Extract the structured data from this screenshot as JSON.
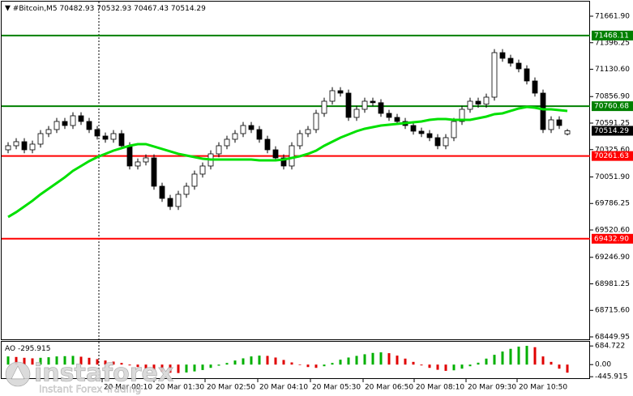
{
  "chart_data": {
    "type": "candlestick",
    "symbol": "#Bitcoin,M5",
    "open": [
      70323.75,
      70364.3,
      70404.85,
      70323.75,
      70380.52,
      70485.95,
      70526.5,
      70607.6,
      70567.05,
      70664.37,
      70607.6,
      70526.5,
      70461.62,
      70429.18,
      70485.95,
      70364.3,
      70161.55,
      70202.1,
      70242.65,
      69958.8,
      69837.15,
      69756.05,
      69877.7,
      69958.8,
      70080.45,
      70161.55,
      70283.2,
      70364.3,
      70429.18,
      70485.95,
      70567.05,
      70526.5,
      70429.18,
      70323.75,
      70242.65,
      70161.55,
      70364.3,
      70485.95,
      70526.5,
      70688.7,
      70810.35,
      70915.78,
      70891.45,
      70648.15,
      70729.25,
      70810.35,
      70795.4,
      70688.7,
      70648.15,
      70607.6,
      70567.05,
      70510.28,
      70485.95,
      70445.4,
      70364.3,
      70445.4,
      70607.6,
      70729.25,
      70810.35,
      70780.6,
      70850.9,
      71296.95,
      71240.18,
      71191.52,
      71134.75,
      71013.1,
      70891.45,
      70526.5,
      70623.82,
      70482.93
    ],
    "high": [
      70399.3,
      70439.85,
      70439.85,
      70415.52,
      70520.95,
      70561.5,
      70642.6,
      70642.6,
      70699.37,
      70699.37,
      70642.6,
      70561.5,
      70496.62,
      70520.95,
      70520.95,
      70399.3,
      70237.1,
      70277.65,
      70277.65,
      69993.8,
      69872.15,
      69912.7,
      69993.8,
      70115.45,
      70196.55,
      70318.2,
      70399.3,
      70464.18,
      70520.95,
      70602.05,
      70602.05,
      70561.5,
      70464.18,
      70358.75,
      70277.65,
      70399.3,
      70520.95,
      70561.5,
      70723.7,
      70845.35,
      70950.78,
      70950.78,
      70926.45,
      70764.25,
      70845.35,
      70845.35,
      70830.4,
      70723.7,
      70683.15,
      70642.6,
      70602.05,
      70545.28,
      70520.95,
      70480.4,
      70480.4,
      70642.6,
      70764.25,
      70845.35,
      70845.35,
      70885.9,
      71331.95,
      71331.95,
      71275.18,
      71226.52,
      71169.75,
      71048.1,
      70926.45,
      70658.82,
      70658.82,
      70532.93
    ],
    "low": [
      70288.75,
      70329.3,
      70288.75,
      70288.75,
      70345.52,
      70450.95,
      70491.5,
      70532.05,
      70532.05,
      70572.6,
      70491.5,
      70426.62,
      70394.18,
      70394.18,
      70329.3,
      70126.55,
      70126.55,
      70167.1,
      69923.8,
      69802.15,
      69721.05,
      69721.05,
      69842.7,
      69923.8,
      70045.45,
      70126.55,
      70248.2,
      70329.3,
      70394.18,
      70450.95,
      70491.5,
      70394.18,
      70288.75,
      70207.65,
      70126.55,
      70126.55,
      70329.3,
      70450.95,
      70491.5,
      70653.7,
      70775.35,
      70856.45,
      70613.15,
      70613.15,
      70694.25,
      70760.4,
      70653.7,
      70613.15,
      70572.6,
      70532.05,
      70475.28,
      70450.95,
      70410.4,
      70329.3,
      70329.3,
      70410.4,
      70572.6,
      70694.25,
      70745.6,
      70745.6,
      70815.9,
      71205.18,
      71156.52,
      71099.75,
      70978.1,
      70856.45,
      70491.5,
      70491.5,
      70532.05,
      70467.43
    ],
    "close": [
      70364.3,
      70404.85,
      70323.75,
      70380.52,
      70485.95,
      70526.5,
      70607.6,
      70567.05,
      70664.37,
      70607.6,
      70526.5,
      70461.62,
      70429.18,
      70485.95,
      70364.3,
      70161.55,
      70202.1,
      70242.65,
      69958.8,
      69837.15,
      69756.05,
      69877.7,
      69958.8,
      70080.45,
      70161.55,
      70283.2,
      70364.3,
      70429.18,
      70485.95,
      70567.05,
      70526.5,
      70429.18,
      70323.75,
      70242.65,
      70161.55,
      70364.3,
      70485.95,
      70526.5,
      70688.7,
      70810.35,
      70915.78,
      70891.45,
      70648.15,
      70729.25,
      70810.35,
      70795.4,
      70688.7,
      70648.15,
      70607.6,
      70567.05,
      70510.28,
      70485.95,
      70445.4,
      70364.3,
      70445.4,
      70607.6,
      70729.25,
      70810.35,
      70780.6,
      70850.9,
      71296.95,
      71240.18,
      71191.52,
      71134.75,
      71013.1,
      70891.45,
      70526.5,
      70623.82,
      70567.05,
      70514.29
    ],
    "ma": [
      69650.62,
      69699.28,
      69756.05,
      69812.82,
      69877.7,
      69934.47,
      69991.24,
      70048.01,
      70112.89,
      70161.55,
      70210.21,
      70250.76,
      70283.2,
      70315.64,
      70339.97,
      70364.3,
      70380.52,
      70380.52,
      70356.19,
      70331.86,
      70307.53,
      70283.2,
      70266.98,
      70250.76,
      70234.54,
      70226.43,
      70226.43,
      70226.43,
      70226.43,
      70226.43,
      70226.43,
      70218.32,
      70218.32,
      70218.32,
      70226.43,
      70242.65,
      70258.87,
      70283.2,
      70315.64,
      70364.3,
      70404.85,
      70445.4,
      70477.84,
      70510.28,
      70534.61,
      70550.83,
      70567.05,
      70575.16,
      70583.27,
      70591.38,
      70599.49,
      70607.6,
      70623.82,
      70631.93,
      70631.93,
      70623.82,
      70623.82,
      70623.82,
      70640.04,
      70656.26,
      70680.59,
      70688.7,
      70713.03,
      70737.36,
      70753.58,
      70745.47,
      70729.25,
      70729.25,
      70721.14,
      70713.03
    ],
    "ma_color": "#00e000",
    "up_color": "#ffffff",
    "down_color": "#000000",
    "ylim": [
      68417.5,
      71799.8
    ],
    "yticks": [
      {
        "value": 71661.9,
        "label": "71661.90"
      },
      71396.25,
      {
        "value": 71130.6,
        "label": "71130.60"
      },
      {
        "value": 70856.9,
        "label": "70856.90"
      },
      70591.25,
      {
        "value": 70325.6,
        "label": "70325.60"
      },
      {
        "value": 70051.9,
        "label": "70051.90"
      },
      69786.25,
      {
        "value": 69520.6,
        "label": "69520.60"
      },
      {
        "value": 69246.9,
        "label": "69246.90"
      },
      68981.25,
      {
        "value": 68715.6,
        "label": "68715.60"
      },
      68449.95
    ],
    "levels": [
      {
        "value": 71468.11,
        "color": "#008000"
      },
      {
        "value": 70760.68,
        "color": "#008000"
      },
      {
        "value": 70261.63,
        "color": "#ff0000"
      },
      {
        "value": 69432.9,
        "label": "69432.90",
        "color": "#ff0000"
      }
    ],
    "x_labels": [
      "20 Mar 00:10",
      "20 Mar 01:30",
      "20 Mar 02:50",
      "20 Mar 04:10",
      "20 Mar 05:30",
      "20 Mar 06:50",
      "20 Mar 08:10",
      "20 Mar 09:30",
      "20 Mar 10:50"
    ],
    "indicator": {
      "name": "AO",
      "values": [
        300,
        280,
        250,
        230,
        250,
        270,
        300,
        310,
        320,
        290,
        250,
        200,
        150,
        110,
        60,
        -30,
        -90,
        -140,
        -200,
        -260,
        -300,
        -310,
        -290,
        -250,
        -200,
        -120,
        -40,
        60,
        150,
        230,
        300,
        330,
        320,
        260,
        170,
        80,
        -20,
        -90,
        -120,
        -60,
        60,
        180,
        260,
        320,
        380,
        430,
        450,
        420,
        330,
        220,
        100,
        -30,
        -120,
        -190,
        -230,
        -210,
        -150,
        -60,
        70,
        220,
        360,
        480,
        580,
        660,
        690,
        640,
        300,
        100,
        -150,
        -295.915
      ],
      "ylim": [
        -470,
        840
      ],
      "yticks": [
        684.722,
        {
          "value": 0,
          "label": "0.00"
        },
        -445.915
      ],
      "up_color": "#00b000",
      "down_color": "#e00000"
    },
    "watermark": {
      "brand": "instaforex",
      "tagline": "Instant Forex Trading"
    }
  }
}
